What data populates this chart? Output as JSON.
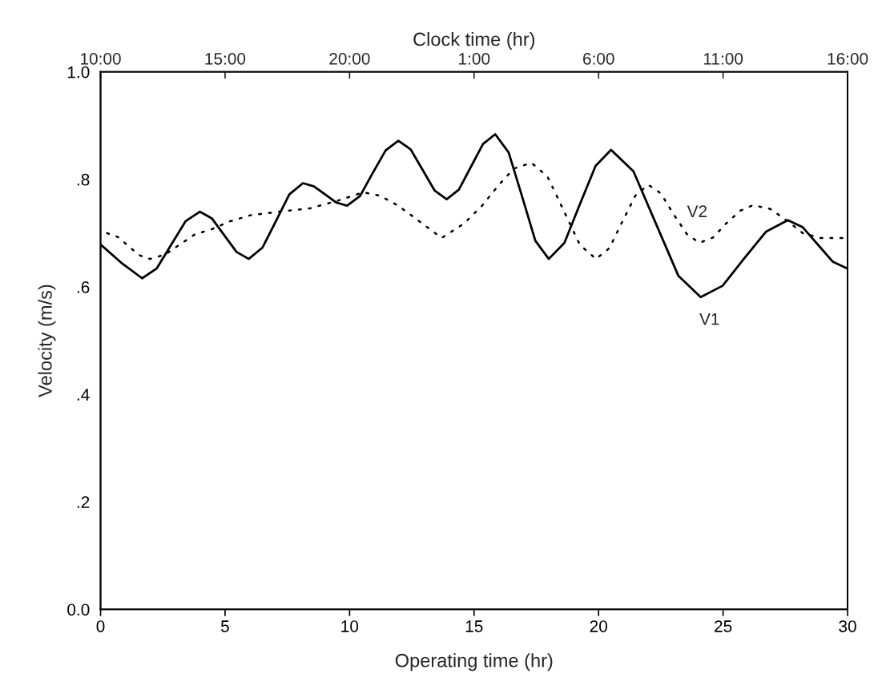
{
  "chart_data": {
    "type": "line",
    "xlabel": "Operating time (hr)",
    "ylabel": "Velocity (m/s)",
    "x2label": "Clock time (hr)",
    "xlim": [
      0,
      30
    ],
    "xticks": [
      0,
      5,
      10,
      15,
      20,
      25,
      30
    ],
    "x2lim": [
      "2000-01-01T10:00",
      "2000-01-02T16:00"
    ],
    "x2ticks": [
      {
        "value": "2000-01-01T10:00",
        "label": "10:00"
      },
      {
        "value": "2000-01-01T15:00",
        "label": "15:00"
      },
      {
        "value": "2000-01-01T20:00",
        "label": "20:00"
      },
      {
        "value": "2000-01-02T01:00",
        "label": "1:00"
      },
      {
        "value": "2000-01-02T06:00",
        "label": "6:00"
      },
      {
        "value": "2000-01-02T11:00",
        "label": "11:00"
      },
      {
        "value": "2000-01-02T16:00",
        "label": "16:00"
      }
    ],
    "ylim": [
      0,
      1.0
    ],
    "yticks": [
      {
        "value": 0,
        "label": "0.0"
      },
      {
        "value": 0.2,
        "label": ".2"
      },
      {
        "value": 0.4,
        "label": ".4"
      },
      {
        "value": 0.6,
        "label": ".6"
      },
      {
        "value": 0.8,
        "label": ".8"
      },
      {
        "value": 1.0,
        "label": "1.0"
      }
    ],
    "grid": false,
    "legend": false,
    "marker": "none",
    "series": [
      {
        "name": "V1",
        "color": "#000000",
        "line_style": "solid",
        "x": [
          0,
          0.83,
          1.67,
          2.25,
          2.83,
          3.41,
          3.99,
          4.48,
          4.97,
          5.46,
          5.95,
          6.5,
          7.04,
          7.58,
          8.13,
          8.57,
          9.02,
          9.46,
          9.9,
          10.42,
          10.93,
          11.45,
          11.96,
          12.45,
          12.93,
          13.42,
          13.9,
          14.39,
          14.88,
          15.36,
          15.85,
          16.39,
          16.93,
          17.46,
          18.0,
          18.63,
          19.25,
          19.88,
          20.5,
          21.4,
          22.3,
          23.2,
          24.1,
          24.98,
          25.85,
          26.73,
          27.6,
          28.2,
          28.8,
          29.4,
          30
        ],
        "values": [
          0.679,
          0.645,
          0.616,
          0.634,
          0.678,
          0.722,
          0.74,
          0.727,
          0.696,
          0.665,
          0.652,
          0.673,
          0.722,
          0.772,
          0.793,
          0.787,
          0.772,
          0.757,
          0.751,
          0.769,
          0.812,
          0.854,
          0.872,
          0.856,
          0.818,
          0.779,
          0.763,
          0.781,
          0.824,
          0.866,
          0.884,
          0.85,
          0.768,
          0.686,
          0.652,
          0.682,
          0.754,
          0.825,
          0.855,
          0.815,
          0.718,
          0.621,
          0.581,
          0.602,
          0.653,
          0.703,
          0.724,
          0.711,
          0.679,
          0.647,
          0.634
        ]
      },
      {
        "name": "V2",
        "color": "#000000",
        "line_style": "dotted",
        "x": [
          0.26,
          0.69,
          1.12,
          1.55,
          1.98,
          2.59,
          3.19,
          3.8,
          4.4,
          5.2,
          6.0,
          7.2,
          8.4,
          9.5,
          10.55,
          11.2,
          11.96,
          12.8,
          13.7,
          14.6,
          15.3,
          16.0,
          16.6,
          17.3,
          17.95,
          18.6,
          19.25,
          19.9,
          20.43,
          20.95,
          21.48,
          22.0,
          22.5,
          23.0,
          23.55,
          24.05,
          24.6,
          25.1,
          25.7,
          26.2,
          26.9,
          27.6,
          28.2,
          28.9,
          29.5,
          30
        ],
        "values": [
          0.7,
          0.693,
          0.676,
          0.659,
          0.652,
          0.66,
          0.679,
          0.698,
          0.706,
          0.722,
          0.733,
          0.74,
          0.746,
          0.76,
          0.776,
          0.77,
          0.751,
          0.722,
          0.691,
          0.718,
          0.75,
          0.79,
          0.82,
          0.831,
          0.805,
          0.742,
          0.678,
          0.652,
          0.672,
          0.721,
          0.77,
          0.79,
          0.774,
          0.736,
          0.698,
          0.682,
          0.692,
          0.717,
          0.742,
          0.752,
          0.745,
          0.722,
          0.7,
          0.691,
          0.691,
          0.691
        ]
      }
    ]
  }
}
